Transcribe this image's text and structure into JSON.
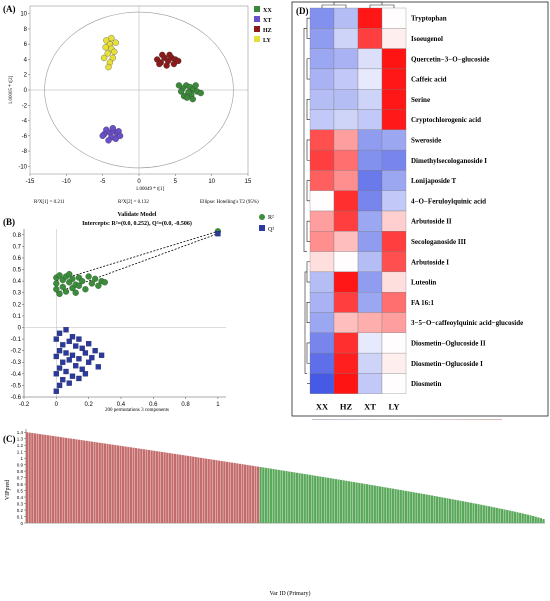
{
  "panelA": {
    "label": "(A)",
    "xlabel": "1.00049 * t[1]",
    "ylabel": "1.00005 * t[2]",
    "footer": [
      "R²X[1] = 0.211",
      "R²X[2] = 0.132",
      "Ellipse: Hotelling's T2 (95%)"
    ],
    "xticks": [
      -15,
      -10,
      -5,
      0,
      5,
      10,
      15
    ],
    "yticks": [
      -10,
      -8,
      -6,
      -4,
      -2,
      0,
      2,
      4,
      6,
      8,
      10
    ],
    "legend": [
      {
        "name": "XX",
        "color": "#3a8a3a"
      },
      {
        "name": "XT",
        "color": "#6a4fc9"
      },
      {
        "name": "HZ",
        "color": "#8b1a1a"
      },
      {
        "name": "LY",
        "color": "#e8e03a"
      }
    ]
  },
  "panelB": {
    "label": "(B)",
    "title": "Validate Model",
    "subtitle": "Intercepts: R²=(0.0, 0.252), Q²=(0.0, -0.506)",
    "xlabel": "200 permutations 3 components",
    "xticks": [
      "-0.2",
      "0",
      "0.2",
      "0.4",
      "0.6",
      "0.8",
      "1"
    ],
    "yticks": [
      "-0.6",
      "-0.5",
      "-0.4",
      "-0.3",
      "-0.2",
      "-0.1",
      "0",
      "0.1",
      "0.2",
      "0.3",
      "0.4",
      "0.5",
      "0.6",
      "0.7",
      "0.8"
    ],
    "legend": [
      {
        "name": "R²",
        "color": "#3d8b3d"
      },
      {
        "name": "Q²",
        "color": "#2b3a9c"
      }
    ]
  },
  "panelC": {
    "label": "(C)",
    "ylabel": "VIPpred",
    "xlabel": "Var ID (Primary)",
    "yticks": [
      "0",
      "0.1",
      "0.2",
      "0.3",
      "0.4",
      "0.5",
      "0.6",
      "0.7",
      "0.8",
      "0.9",
      "1",
      "1.1",
      "1.2",
      "1.3",
      "1.4"
    ]
  },
  "panelD": {
    "label": "(D)",
    "columns": [
      "XX",
      "HZ",
      "XT",
      "LY"
    ],
    "rows": [
      "Tryptophan",
      "Isoeugenol",
      "Quercetin−3−O−glucoside",
      "Caffeic acid",
      "Serine",
      "Cryptochlorogenic acid",
      "Sweroside",
      "Dimethylsecologanoside I",
      "Lonijaposide T",
      "4−O−Feruloylquinic acid",
      "Arbutoside II",
      "Secologanoside III",
      "Arbutoside I",
      "Luteolin",
      "FA 16:1",
      "3−5−O−caffeoylquinic acid−glucoside",
      "Diosmetin−Oglucoside II",
      "Diosmetin−Oglucoside I",
      "Diosmetin"
    ],
    "scale_ticks": [
      "−1.49",
      "−1.12",
      "−0.75",
      "−0.38",
      "−0.01",
      "0.36",
      "0.73",
      "1.10",
      "1.47"
    ]
  },
  "chart_data": [
    {
      "type": "scatter",
      "title": "",
      "xlabel": "1.00049 * t[1]",
      "ylabel": "1.00005 * t[2]",
      "xlim": [
        -15,
        15
      ],
      "ylim": [
        -11,
        11
      ],
      "legend_position": "top-right",
      "series": [
        {
          "name": "XX",
          "color": "#3a8a3a",
          "points": [
            [
              6.5,
              0.6
            ],
            [
              7.0,
              0.4
            ],
            [
              7.5,
              0.1
            ],
            [
              6.0,
              0.2
            ],
            [
              8.0,
              -0.2
            ],
            [
              7.2,
              -0.6
            ],
            [
              6.8,
              -0.3
            ],
            [
              5.5,
              0.6
            ],
            [
              8.5,
              -0.4
            ],
            [
              7.8,
              0.6
            ],
            [
              6.2,
              -0.8
            ],
            [
              7.4,
              -1.2
            ],
            [
              6.6,
              -1.0
            ],
            [
              5.8,
              -0.2
            ]
          ]
        },
        {
          "name": "XT",
          "color": "#6a4fc9",
          "points": [
            [
              -4.5,
              -5.2
            ],
            [
              -4.0,
              -5.6
            ],
            [
              -3.5,
              -5.4
            ],
            [
              -3.0,
              -5.8
            ],
            [
              -4.8,
              -5.8
            ],
            [
              -3.8,
              -6.2
            ],
            [
              -2.8,
              -5.4
            ],
            [
              -4.2,
              -6.6
            ],
            [
              -3.2,
              -6.4
            ],
            [
              -5.0,
              -6.0
            ],
            [
              -3.6,
              -5.0
            ],
            [
              -2.6,
              -6.0
            ]
          ]
        },
        {
          "name": "HZ",
          "color": "#8b1a1a",
          "points": [
            [
              2.5,
              4.0
            ],
            [
              3.0,
              3.6
            ],
            [
              3.5,
              4.2
            ],
            [
              4.0,
              3.8
            ],
            [
              4.5,
              4.2
            ],
            [
              5.0,
              4.0
            ],
            [
              3.2,
              4.6
            ],
            [
              4.2,
              4.6
            ],
            [
              2.8,
              3.4
            ],
            [
              4.8,
              3.4
            ],
            [
              5.4,
              3.8
            ],
            [
              3.8,
              3.2
            ]
          ]
        },
        {
          "name": "LY",
          "color": "#e8e03a",
          "points": [
            [
              -4.5,
              6.5
            ],
            [
              -4.0,
              6.0
            ],
            [
              -3.8,
              5.4
            ],
            [
              -4.3,
              4.8
            ],
            [
              -3.6,
              4.2
            ],
            [
              -4.0,
              3.6
            ],
            [
              -3.4,
              5.0
            ],
            [
              -4.6,
              5.6
            ],
            [
              -3.2,
              6.2
            ],
            [
              -4.8,
              4.2
            ],
            [
              -3.8,
              6.8
            ],
            [
              -4.2,
              3.0
            ]
          ]
        }
      ]
    },
    {
      "type": "scatter",
      "title": "Validate Model",
      "xlabel": "200 permutations 3 components",
      "xlim": [
        -0.2,
        1.05
      ],
      "ylim": [
        -0.6,
        0.85
      ],
      "series": [
        {
          "name": "R²",
          "color": "#3d8b3d",
          "points": [
            [
              0.0,
              0.43
            ],
            [
              0.0,
              0.38
            ],
            [
              0.0,
              0.33
            ],
            [
              0.02,
              0.45
            ],
            [
              0.02,
              0.29
            ],
            [
              0.04,
              0.41
            ],
            [
              0.04,
              0.35
            ],
            [
              0.06,
              0.44
            ],
            [
              0.06,
              0.31
            ],
            [
              0.08,
              0.39
            ],
            [
              0.08,
              0.46
            ],
            [
              0.1,
              0.34
            ],
            [
              0.1,
              0.42
            ],
            [
              0.12,
              0.37
            ],
            [
              0.12,
              0.3
            ],
            [
              0.14,
              0.43
            ],
            [
              0.14,
              0.36
            ],
            [
              0.16,
              0.4
            ],
            [
              0.18,
              0.33
            ],
            [
              0.2,
              0.44
            ],
            [
              0.22,
              0.38
            ],
            [
              0.24,
              0.42
            ],
            [
              0.26,
              0.36
            ],
            [
              0.28,
              0.4
            ],
            [
              0.3,
              0.39
            ]
          ]
        },
        {
          "name": "Q²",
          "color": "#2b3a9c",
          "points": [
            [
              0.0,
              -0.1
            ],
            [
              0.0,
              -0.25
            ],
            [
              0.0,
              -0.4
            ],
            [
              0.0,
              -0.55
            ],
            [
              0.02,
              -0.05
            ],
            [
              0.02,
              -0.2
            ],
            [
              0.02,
              -0.35
            ],
            [
              0.02,
              -0.5
            ],
            [
              0.04,
              -0.15
            ],
            [
              0.04,
              -0.3
            ],
            [
              0.04,
              -0.45
            ],
            [
              0.06,
              -0.02
            ],
            [
              0.06,
              -0.22
            ],
            [
              0.06,
              -0.38
            ],
            [
              0.08,
              -0.12
            ],
            [
              0.08,
              -0.28
            ],
            [
              0.08,
              -0.48
            ],
            [
              0.1,
              -0.08
            ],
            [
              0.1,
              -0.24
            ],
            [
              0.1,
              -0.42
            ],
            [
              0.12,
              -0.16
            ],
            [
              0.12,
              -0.33
            ],
            [
              0.14,
              -0.1
            ],
            [
              0.14,
              -0.27
            ],
            [
              0.14,
              -0.44
            ],
            [
              0.16,
              -0.18
            ],
            [
              0.16,
              -0.36
            ],
            [
              0.18,
              -0.22
            ],
            [
              0.18,
              -0.4
            ],
            [
              0.2,
              -0.14
            ],
            [
              0.2,
              -0.3
            ],
            [
              0.22,
              -0.26
            ],
            [
              0.24,
              -0.2
            ],
            [
              0.26,
              -0.34
            ],
            [
              0.28,
              -0.24
            ]
          ]
        },
        {
          "name": "R² actual",
          "color": "#3d8b3d",
          "points": [
            [
              1.0,
              0.83
            ]
          ]
        },
        {
          "name": "Q² actual",
          "color": "#2b3a9c",
          "points": [
            [
              1.0,
              0.81
            ]
          ]
        }
      ],
      "regression": {
        "r2_intercept": [
          0.0,
          0.252
        ],
        "q2_intercept": [
          0.0,
          -0.506
        ]
      }
    },
    {
      "type": "bar",
      "title": "",
      "xlabel": "Var ID (Primary)",
      "ylabel": "VIPpred",
      "ylim": [
        0,
        1.45
      ],
      "count": 200,
      "max_value": 1.4,
      "min_value": 0.06,
      "red_until_index": 90,
      "colors": {
        "high": "#c46b6b",
        "low": "#5aa85a"
      }
    },
    {
      "type": "heatmap",
      "title": "",
      "columns": [
        "XX",
        "HZ",
        "XT",
        "LY"
      ],
      "rows": [
        "Tryptophan",
        "Isoeugenol",
        "Quercetin−3−O−glucoside",
        "Caffeic acid",
        "Serine",
        "Cryptochlorogenic acid",
        "Sweroside",
        "Dimethylsecologanoside I",
        "Lonijaposide T",
        "4−O−Feruloylquinic acid",
        "Arbutoside II",
        "Secologanoside III",
        "Arbutoside I",
        "Luteolin",
        "FA 16:1",
        "3−5−O−caffeoylquinic acid−glucoside",
        "Diosmetin−Oglucoside II",
        "Diosmetin−Oglucoside I",
        "Diosmetin"
      ],
      "values": [
        [
          -1.0,
          -0.6,
          1.45,
          0.0
        ],
        [
          -0.9,
          -0.4,
          1.2,
          0.1
        ],
        [
          -0.8,
          -0.7,
          -0.3,
          1.47
        ],
        [
          -0.7,
          -0.5,
          -0.2,
          1.45
        ],
        [
          -0.6,
          -0.6,
          -0.4,
          1.46
        ],
        [
          -0.5,
          -0.4,
          -0.5,
          1.44
        ],
        [
          1.1,
          0.6,
          -0.9,
          -0.8
        ],
        [
          1.2,
          0.9,
          -1.0,
          -1.1
        ],
        [
          1.0,
          0.7,
          -1.2,
          -0.8
        ],
        [
          0.0,
          1.3,
          -1.1,
          -0.5
        ],
        [
          0.6,
          1.2,
          -0.8,
          0.3
        ],
        [
          0.7,
          0.4,
          -0.9,
          1.2
        ],
        [
          0.2,
          0.0,
          -0.6,
          1.1
        ],
        [
          -0.6,
          1.45,
          -0.9,
          0.2
        ],
        [
          -0.7,
          1.2,
          -0.8,
          0.9
        ],
        [
          -0.8,
          0.4,
          0.5,
          0.6
        ],
        [
          -1.1,
          1.3,
          -0.2,
          0.0
        ],
        [
          -1.3,
          1.4,
          -0.4,
          0.1
        ],
        [
          -1.49,
          1.47,
          -0.5,
          0.0
        ]
      ],
      "scale_min": -1.49,
      "scale_max": 1.47
    }
  ]
}
